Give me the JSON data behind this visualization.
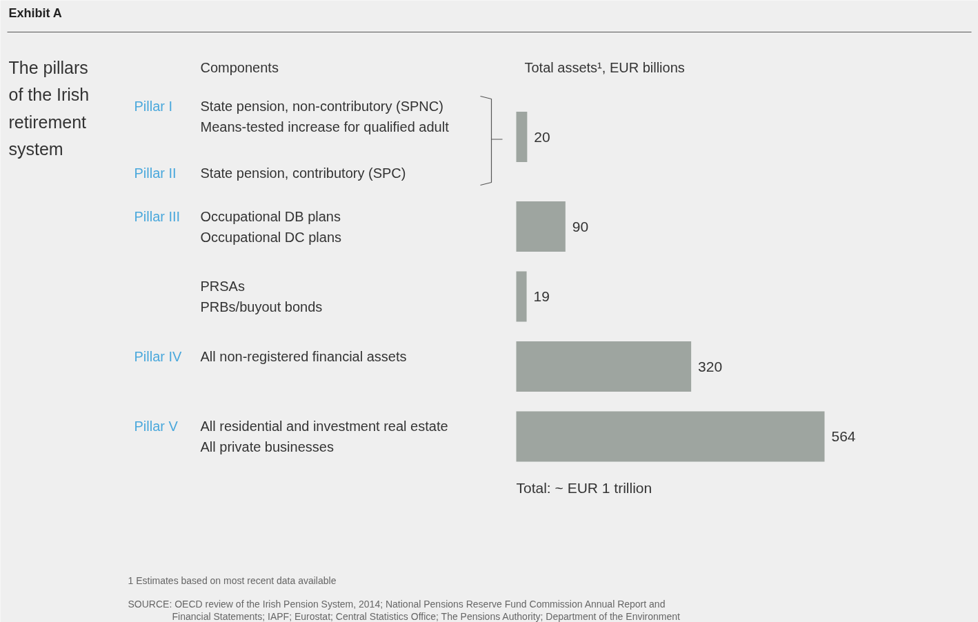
{
  "chart_data": {
    "type": "bar",
    "orientation": "horizontal",
    "title": "Exhibit A",
    "subtitle": "The pillars of the Irish retirement system",
    "ylabel": "Components",
    "xlabel": "Total assets¹, EUR billions",
    "categories": [
      "State pension, non-contributory (SPNC)\nMeans-tested increase for qualified adult\n\nState pension, contributory (SPC)",
      "Occupational DB plans\nOccupational DC plans",
      "PRSAs\nPRBs/buyout bonds",
      "All non-registered financial assets",
      "All residential and investment real estate\nAll private businesses"
    ],
    "values": [
      20,
      90,
      19,
      320,
      564
    ],
    "color": "#9ea5a0",
    "data_labels": true,
    "annotations": [
      "Pillar I",
      "Pillar II",
      "Pillar III",
      "Pillar IV",
      "Pillar V",
      "Total: ~ EUR 1 trillion",
      "1 Estimates based on most recent data available",
      "SOURCE: OECD review of the Irish Pension System, 2014; National Pensions Reserve Fund Commission Annual Report and\nFinancial Statements; IAPF; Eurostat; Central Statistics Office; The Pensions Authority; Department of the Environment"
    ]
  }
}
